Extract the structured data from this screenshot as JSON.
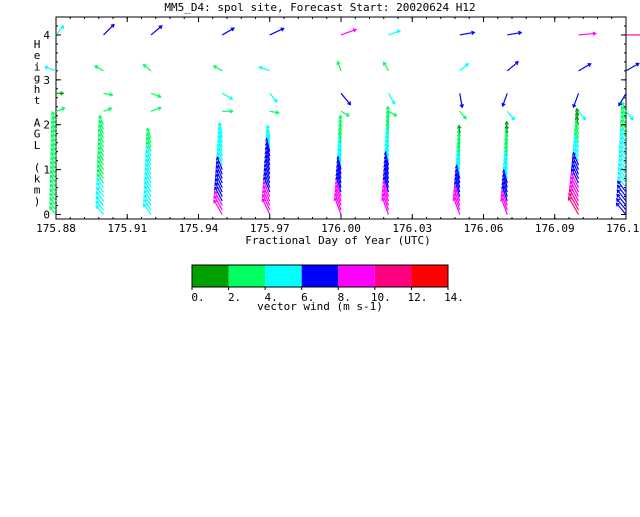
{
  "chart_data": {
    "type": "wind-barb time-height",
    "title": "MM5_D4: spol site,  Forecast Start: 20020624 H12",
    "xlabel": "Fractional Day of Year (UTC)",
    "ylabel_letters": [
      "H",
      "e",
      "i",
      "g",
      "h",
      "t",
      " ",
      "A",
      "G",
      "L",
      " ",
      "(",
      "k",
      "m",
      ")"
    ],
    "xlim": [
      175.88,
      176.12
    ],
    "ylim": [
      -0.1,
      4.4
    ],
    "x_ticks": [
      {
        "value": 175.88,
        "label": "175.88"
      },
      {
        "value": 175.91,
        "label": "175.91"
      },
      {
        "value": 175.94,
        "label": "175.94"
      },
      {
        "value": 175.97,
        "label": "175.97"
      },
      {
        "value": 176.0,
        "label": "176.00"
      },
      {
        "value": 176.03,
        "label": "176.03"
      },
      {
        "value": 176.06,
        "label": "176.06"
      },
      {
        "value": 176.09,
        "label": "176.09"
      },
      {
        "value": 176.12,
        "label": "176.12"
      }
    ],
    "y_ticks": [
      {
        "value": 0,
        "label": "0"
      },
      {
        "value": 1,
        "label": "1"
      },
      {
        "value": 2,
        "label": "2"
      },
      {
        "value": 3,
        "label": "3"
      },
      {
        "value": 4,
        "label": "4"
      }
    ],
    "colorbar": {
      "label": "vector wind (m s-1)",
      "bounds": [
        0,
        2,
        4,
        6,
        8,
        10,
        12,
        14
      ],
      "tick_labels": [
        "0.",
        "2.",
        "4.",
        "6.",
        "8.",
        "10.",
        "12.",
        "14."
      ],
      "colors": [
        "#00a000",
        "#00ff60",
        "#00ffff",
        "#0000ff",
        "#ff00ff",
        "#ff0080",
        "#ff0000"
      ]
    },
    "times": [
      175.88,
      175.9,
      175.92,
      175.95,
      175.97,
      176.0,
      176.02,
      176.05,
      176.07,
      176.1,
      176.12
    ],
    "upper_levels_km": [
      4.0,
      3.2,
      2.7,
      2.3
    ],
    "upper_speed_ms": [
      [
        4.5,
        7.0,
        6.5,
        6.0,
        7.5,
        8.0,
        5.0,
        7.0,
        6.5,
        9.0,
        11.0
      ],
      [
        4.5,
        3.0,
        3.0,
        3.0,
        4.0,
        3.0,
        3.0,
        4.0,
        6.5,
        6.5,
        7.0
      ],
      [
        1.0,
        2.5,
        3.5,
        4.5,
        4.0,
        7.0,
        5.0,
        6.5,
        6.0,
        7.0,
        6.5
      ],
      [
        2.5,
        2.0,
        3.5,
        3.5,
        2.5,
        2.5,
        2.5,
        3.0,
        4.0,
        4.0,
        4.0
      ]
    ],
    "upper_dir_deg": [
      [
        220,
        225,
        230,
        240,
        245,
        250,
        250,
        260,
        260,
        265,
        270
      ],
      [
        110,
        120,
        130,
        120,
        110,
        160,
        150,
        230,
        230,
        240,
        240
      ],
      [
        270,
        280,
        290,
        300,
        320,
        320,
        330,
        350,
        20,
        20,
        30
      ],
      [
        250,
        250,
        250,
        270,
        280,
        300,
        300,
        320,
        320,
        320,
        320
      ]
    ],
    "lower_top_km": [
      2.1,
      2.0,
      1.75,
      1.85,
      1.7,
      2.0,
      2.2,
      1.85,
      1.95,
      2.2,
      2.3
    ],
    "lower_level_step_km": 0.1,
    "lower_speed_bottom_ms": [
      3.0,
      4.5,
      5.5,
      8.5,
      9.0,
      9.5,
      9.5,
      9.5,
      9.0,
      11.0,
      7.0
    ],
    "lower_speed_top_ms": [
      2.5,
      3.0,
      3.5,
      4.0,
      5.5,
      2.5,
      2.5,
      1.5,
      1.0,
      1.0,
      3.0
    ],
    "lower_dir_deg": [
      140,
      140,
      145,
      150,
      155,
      160,
      160,
      160,
      160,
      150,
      140
    ]
  }
}
